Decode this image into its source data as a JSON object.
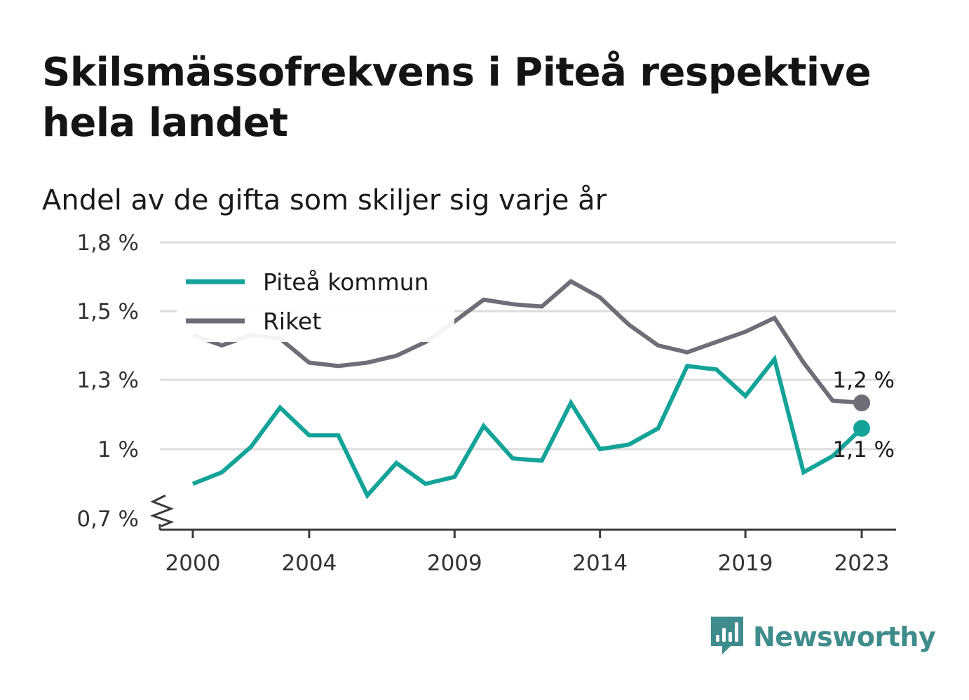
{
  "title": "Skilsmässofrekvens i Piteå respektive hela landet",
  "subtitle": "Andel av de gifta som skiljer sig varje år",
  "brand": {
    "name": "Newsworthy",
    "icon": "bar-chart-speech-icon",
    "color": "#3e8c8b"
  },
  "chart_data": {
    "type": "line",
    "title": "Skilsmässofrekvens i Piteå respektive hela landet",
    "subtitle": "Andel av de gifta som skiljer sig varje år",
    "xlabel": "",
    "ylabel": "",
    "x_ticks": [
      2000,
      2004,
      2009,
      2014,
      2019,
      2023
    ],
    "y_ticks": [
      {
        "value": 0.7,
        "label": "0,7 %"
      },
      {
        "value": 1.0,
        "label": "1 %"
      },
      {
        "value": 1.3,
        "label": "1,3 %"
      },
      {
        "value": 1.5,
        "label": "1,5 %"
      },
      {
        "value": 1.8,
        "label": "1,8 %"
      }
    ],
    "ylim": [
      0.7,
      1.8
    ],
    "y_axis_break": true,
    "grid": true,
    "legend_position": "top-left",
    "x": [
      2000,
      2001,
      2002,
      2003,
      2004,
      2005,
      2006,
      2007,
      2008,
      2009,
      2010,
      2011,
      2012,
      2013,
      2014,
      2015,
      2016,
      2017,
      2018,
      2019,
      2020,
      2021,
      2022,
      2023
    ],
    "series": [
      {
        "name": "Piteå kommun",
        "color": "#14a398",
        "values": [
          0.85,
          0.9,
          1.01,
          1.18,
          1.06,
          1.06,
          0.8,
          0.94,
          0.85,
          0.88,
          1.1,
          0.96,
          0.95,
          1.2,
          1.0,
          1.02,
          1.09,
          1.34,
          1.33,
          1.23,
          1.36,
          0.9,
          0.97,
          1.09
        ],
        "end_label": "1,1 %"
      },
      {
        "name": "Riket",
        "color": "#6e6e78",
        "values": [
          1.43,
          1.4,
          1.43,
          1.42,
          1.35,
          1.34,
          1.35,
          1.37,
          1.41,
          1.47,
          1.55,
          1.53,
          1.52,
          1.63,
          1.56,
          1.46,
          1.4,
          1.38,
          1.41,
          1.44,
          1.48,
          1.35,
          1.21,
          1.2
        ],
        "end_label": "1,2 %"
      }
    ]
  }
}
